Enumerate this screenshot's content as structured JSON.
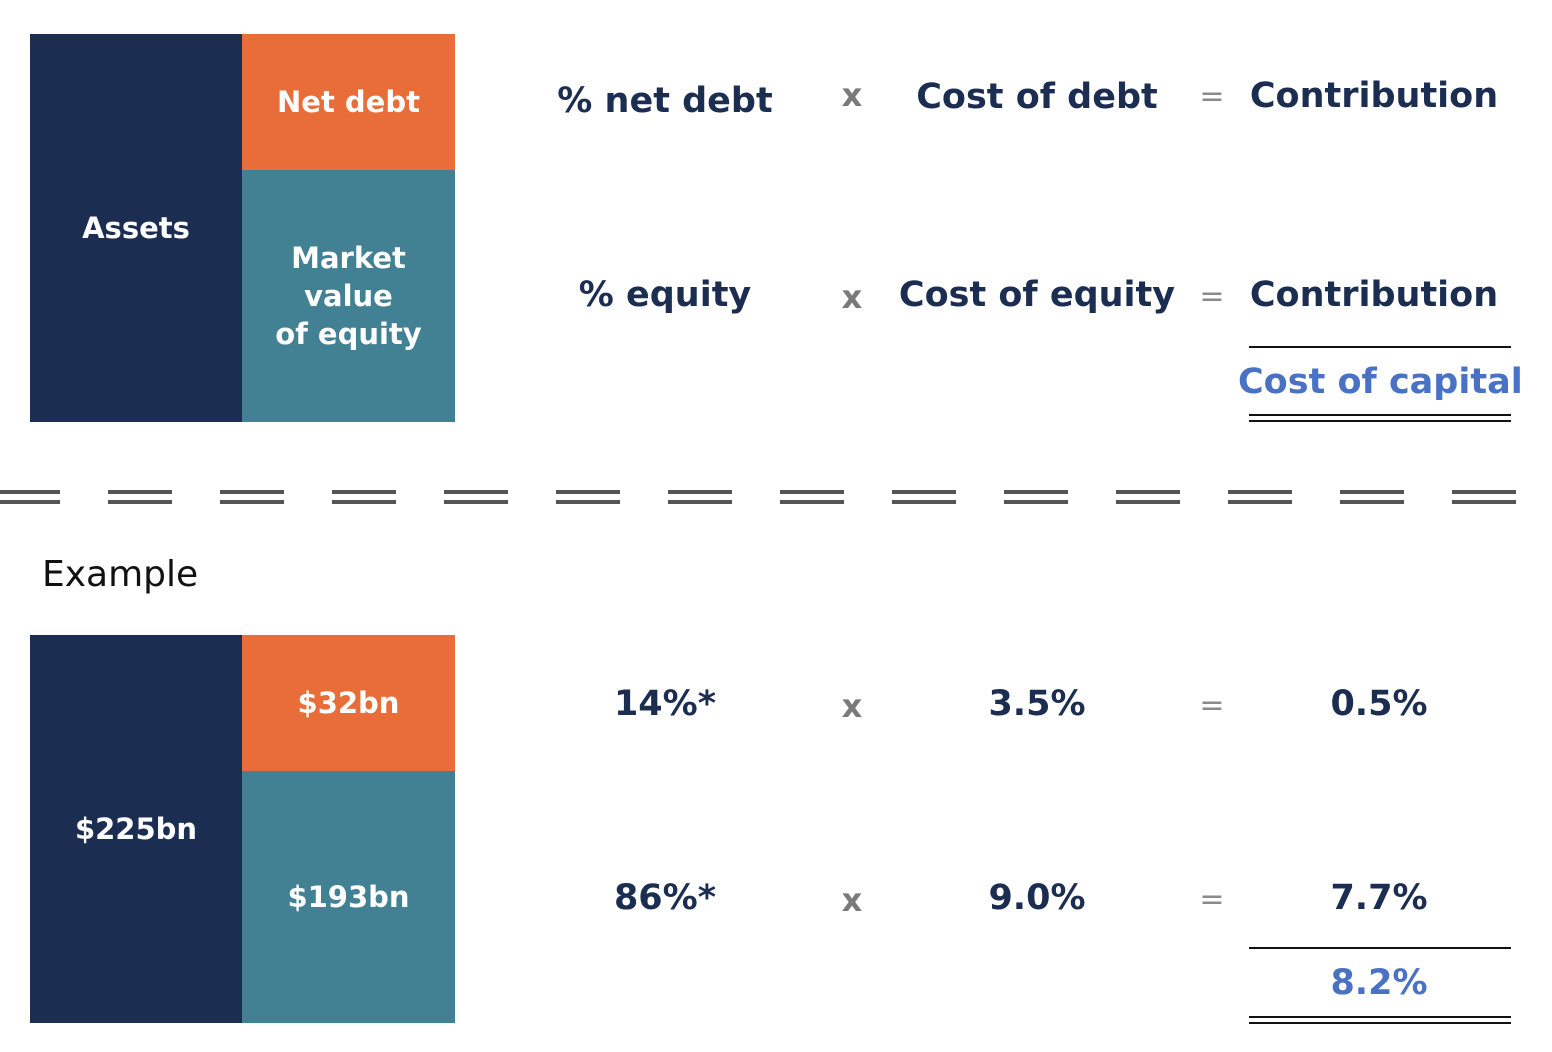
{
  "formula": {
    "assets_label": "Assets",
    "net_debt_label": "Net debt",
    "equity_label_lines": [
      "Market",
      "value",
      "of equity"
    ],
    "rows": [
      {
        "weight": "% net debt",
        "times": "x",
        "cost": "Cost of debt",
        "equals": "=",
        "result": "Contribution"
      },
      {
        "weight": "% equity",
        "times": "x",
        "cost": "Cost of equity",
        "equals": "=",
        "result": "Contribution"
      }
    ],
    "total": "Cost of capital"
  },
  "example": {
    "heading": "Example",
    "assets_value": "$225bn",
    "net_debt_value": "$32bn",
    "equity_value": "$193bn",
    "rows": [
      {
        "weight": "14%*",
        "times": "x",
        "cost": "3.5%",
        "equals": "=",
        "result": "0.5%"
      },
      {
        "weight": "86%*",
        "times": "x",
        "cost": "9.0%",
        "equals": "=",
        "result": "7.7%"
      }
    ],
    "total": "8.2%"
  },
  "colors": {
    "navy": "#1c2d52",
    "orange": "#e86d38",
    "teal": "#428193",
    "highlight_blue": "#4a72c4",
    "operator_grey": "#7a7a7a"
  }
}
